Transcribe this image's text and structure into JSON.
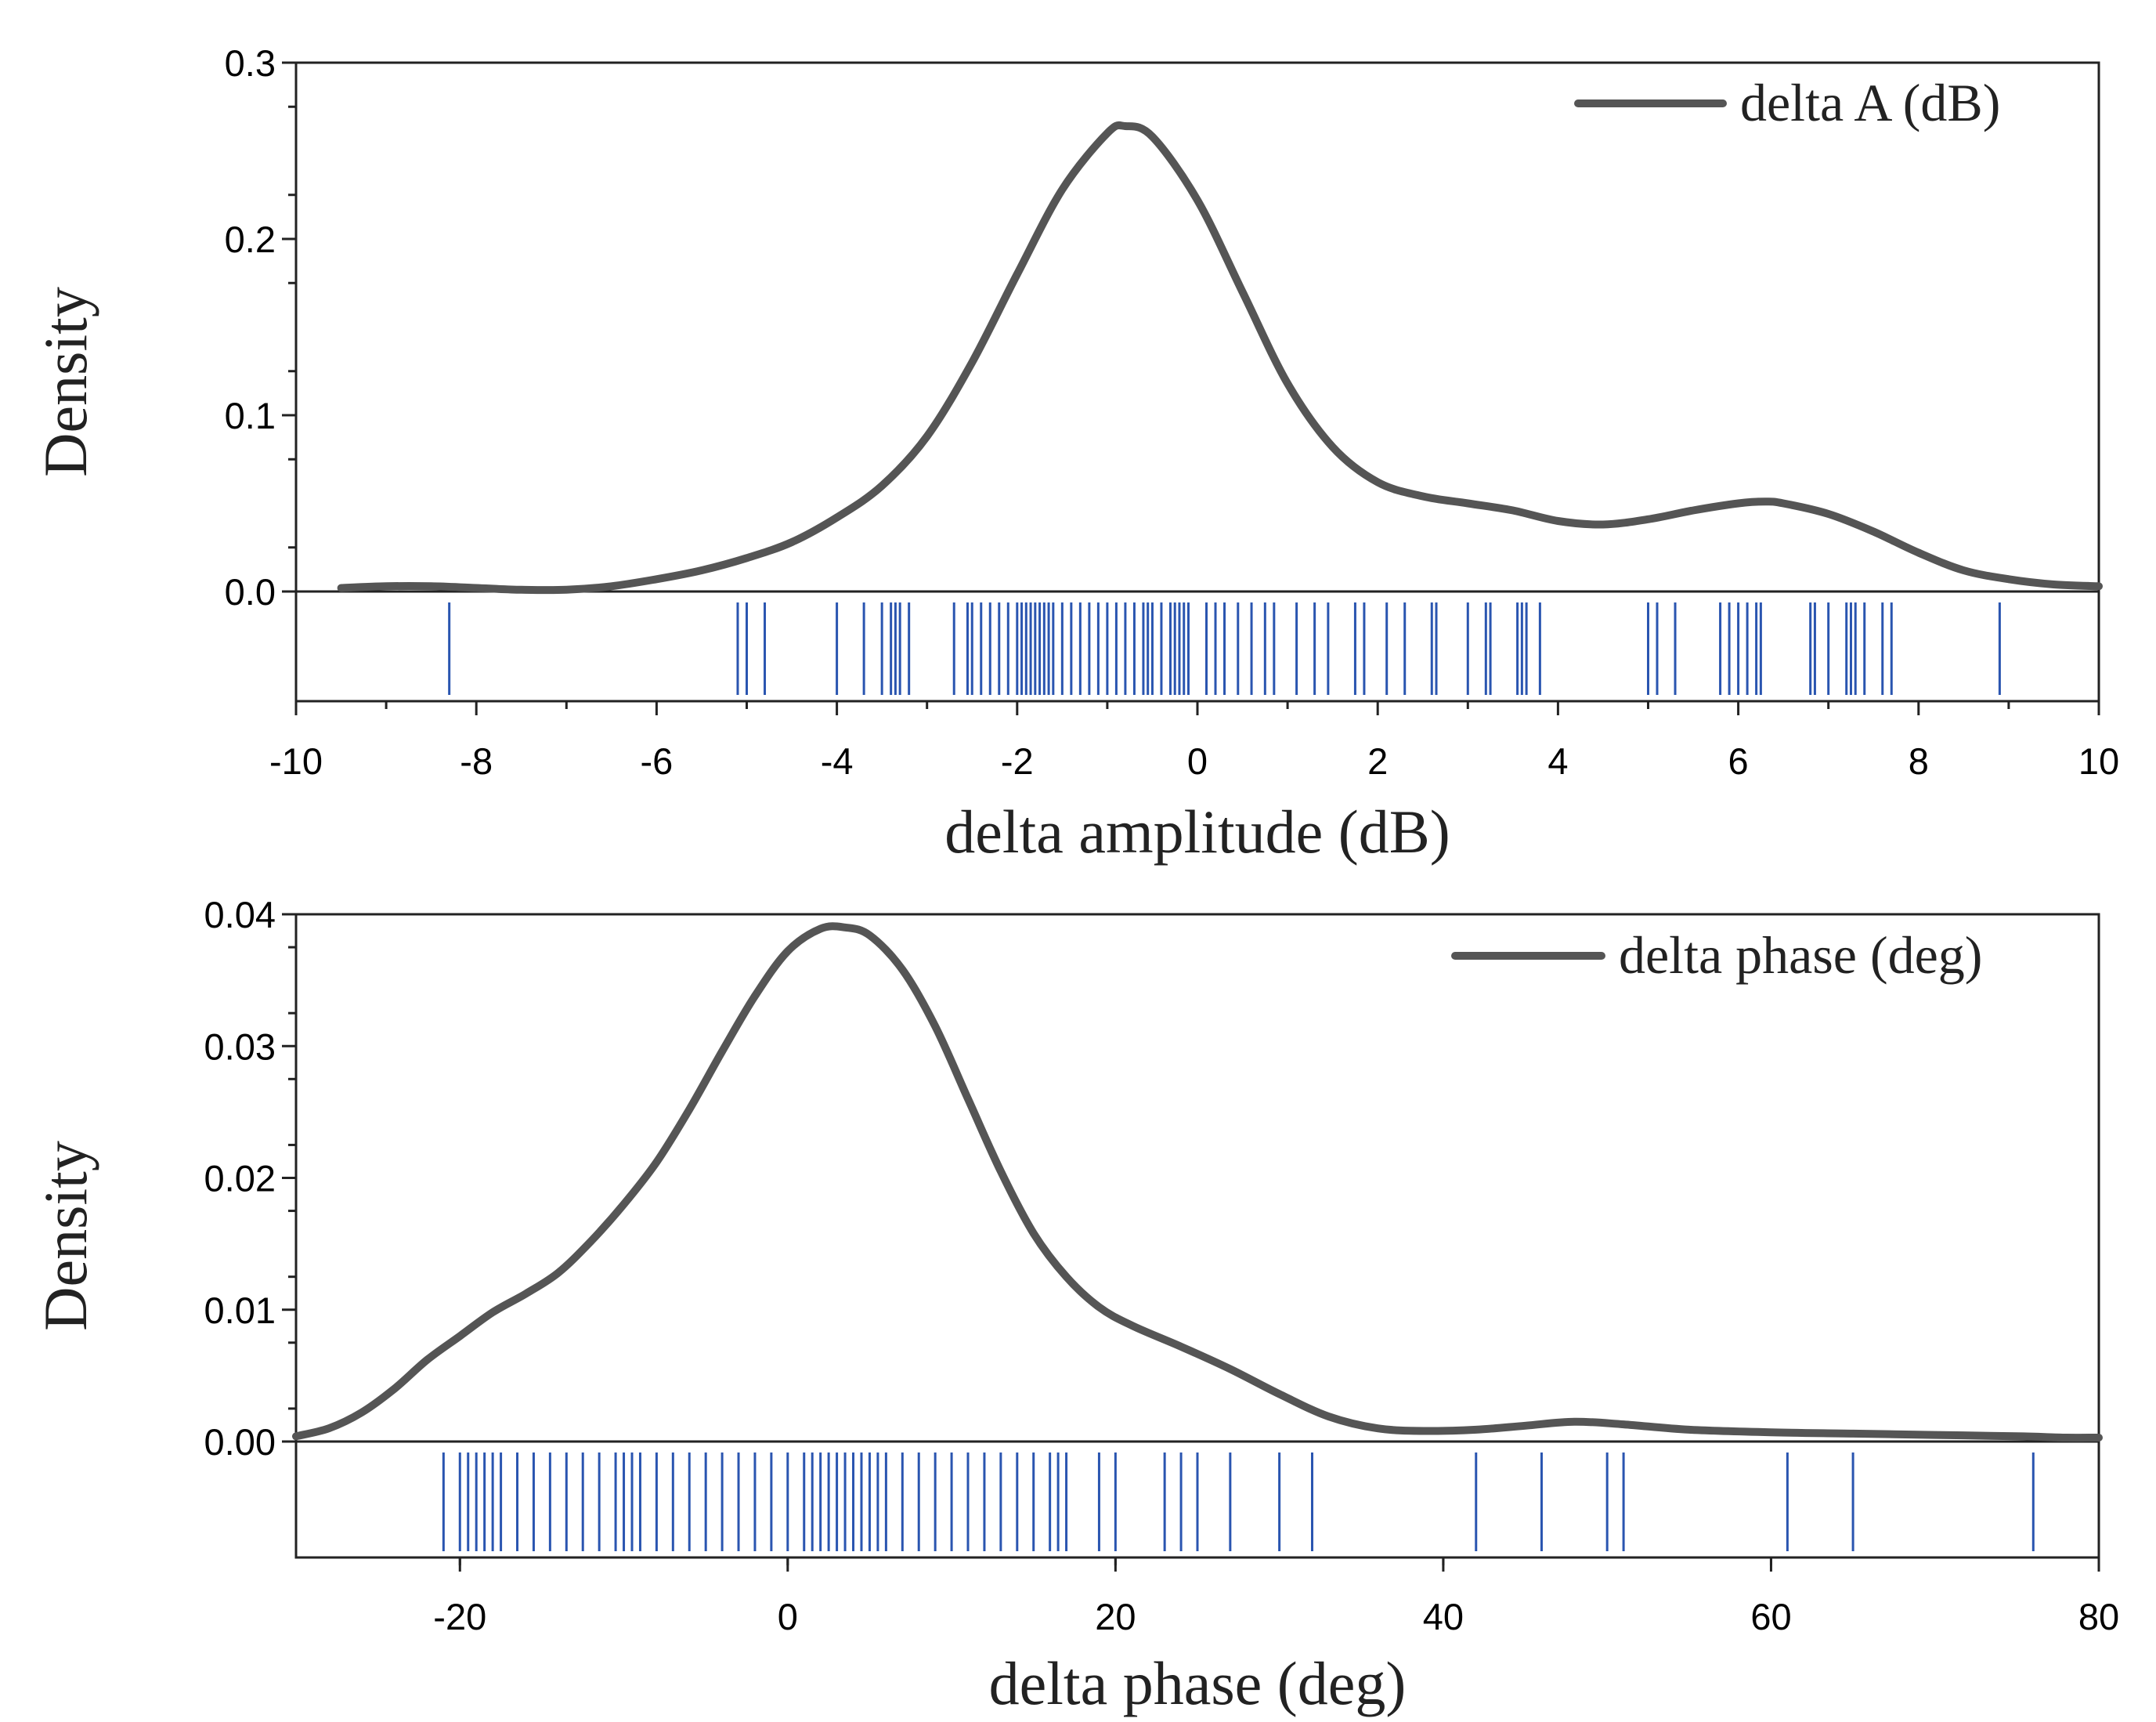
{
  "chart_data": [
    {
      "type": "line",
      "subtype": "kernel-density-with-rug",
      "legend": "delta A (dB)",
      "legend_position": "top-right",
      "xlabel": "delta amplitude (dB)",
      "ylabel": "Density",
      "xlim": [
        -10,
        10
      ],
      "ylim": [
        -0.063,
        0.3
      ],
      "xticks": [
        -10,
        -8,
        -6,
        -4,
        -2,
        0,
        2,
        4,
        6,
        8,
        10
      ],
      "xtick_labels": [
        "-10",
        "-8",
        "-6",
        "-4",
        "-2",
        "0",
        "2",
        "4",
        "6",
        "8",
        "10"
      ],
      "yticks": [
        0.0,
        0.1,
        0.2,
        0.3
      ],
      "ytick_labels": [
        "0.0",
        "0.1",
        "0.2",
        "0.3"
      ],
      "x": [
        -9.5,
        -9.0,
        -8.5,
        -8.0,
        -7.5,
        -7.0,
        -6.5,
        -6.0,
        -5.5,
        -5.0,
        -4.5,
        -4.0,
        -3.5,
        -3.0,
        -2.5,
        -2.0,
        -1.5,
        -1.0,
        -0.8,
        -0.5,
        0.0,
        0.5,
        1.0,
        1.5,
        2.0,
        2.5,
        3.0,
        3.5,
        4.0,
        4.5,
        5.0,
        5.5,
        6.0,
        6.3,
        6.5,
        7.0,
        7.5,
        8.0,
        8.5,
        9.0,
        9.5,
        10.0
      ],
      "y": [
        0.002,
        0.003,
        0.003,
        0.002,
        0.001,
        0.001,
        0.003,
        0.007,
        0.012,
        0.019,
        0.028,
        0.042,
        0.06,
        0.088,
        0.13,
        0.18,
        0.228,
        0.26,
        0.264,
        0.258,
        0.222,
        0.17,
        0.118,
        0.082,
        0.062,
        0.054,
        0.05,
        0.046,
        0.04,
        0.038,
        0.041,
        0.046,
        0.05,
        0.051,
        0.05,
        0.044,
        0.034,
        0.022,
        0.012,
        0.007,
        0.004,
        0.003
      ],
      "rug": [
        -8.3,
        -5.1,
        -5.0,
        -4.8,
        -4.0,
        -3.7,
        -3.5,
        -3.4,
        -3.35,
        -3.3,
        -3.2,
        -2.7,
        -2.55,
        -2.5,
        -2.4,
        -2.3,
        -2.2,
        -2.1,
        -2.0,
        -1.95,
        -1.9,
        -1.85,
        -1.8,
        -1.75,
        -1.7,
        -1.65,
        -1.6,
        -1.5,
        -1.4,
        -1.3,
        -1.2,
        -1.1,
        -1.0,
        -0.9,
        -0.8,
        -0.7,
        -0.6,
        -0.55,
        -0.5,
        -0.4,
        -0.3,
        -0.25,
        -0.2,
        -0.15,
        -0.1,
        0.1,
        0.2,
        0.3,
        0.45,
        0.6,
        0.75,
        0.85,
        1.1,
        1.3,
        1.45,
        1.75,
        1.85,
        2.1,
        2.3,
        2.6,
        2.65,
        3.0,
        3.2,
        3.25,
        3.55,
        3.6,
        3.65,
        3.8,
        5.0,
        5.1,
        5.3,
        5.8,
        5.9,
        6.0,
        6.1,
        6.2,
        6.25,
        6.8,
        6.85,
        7.0,
        7.2,
        7.25,
        7.3,
        7.4,
        7.6,
        7.7,
        8.9
      ]
    },
    {
      "type": "line",
      "subtype": "kernel-density-with-rug",
      "legend": "delta phase (deg)",
      "legend_position": "top-right",
      "xlabel": "delta phase (deg)",
      "ylabel": "Density",
      "xlim": [
        -30,
        80
      ],
      "ylim": [
        -0.0092,
        0.042
      ],
      "xticks": [
        -20,
        0,
        20,
        40,
        60,
        80
      ],
      "xtick_labels": [
        "-20",
        "0",
        "20",
        "40",
        "60",
        "80"
      ],
      "yticks": [
        0.0,
        0.01,
        0.02,
        0.03,
        0.04
      ],
      "ytick_labels": [
        "0.00",
        "0.01",
        "0.02",
        "0.03",
        "0.04"
      ],
      "x": [
        -30,
        -28,
        -26,
        -24,
        -22,
        -20,
        -18,
        -16,
        -14,
        -12,
        -10,
        -8,
        -6,
        -4,
        -2,
        0,
        2,
        3.5,
        5,
        7,
        9,
        11,
        13,
        15,
        17,
        19,
        21,
        24,
        27,
        30,
        33,
        36,
        39,
        42,
        45,
        48,
        51,
        55,
        60,
        65,
        70,
        75,
        78,
        80
      ],
      "y": [
        0.0004,
        0.001,
        0.0022,
        0.004,
        0.0062,
        0.008,
        0.0098,
        0.0112,
        0.0128,
        0.0152,
        0.018,
        0.0212,
        0.0252,
        0.0296,
        0.0338,
        0.0372,
        0.0389,
        0.039,
        0.0384,
        0.0358,
        0.0315,
        0.026,
        0.0205,
        0.0158,
        0.0125,
        0.0102,
        0.0088,
        0.0072,
        0.0055,
        0.0036,
        0.0019,
        0.001,
        0.0008,
        0.0009,
        0.0012,
        0.0015,
        0.0013,
        0.0009,
        0.0007,
        0.0006,
        0.0005,
        0.0004,
        0.0003,
        0.0003
      ],
      "rug": [
        -21,
        -20,
        -19.5,
        -19,
        -18.5,
        -18,
        -17.5,
        -16.5,
        -15.5,
        -14.5,
        -13.5,
        -12.5,
        -11.5,
        -10.5,
        -10,
        -9.5,
        -9,
        -8,
        -7,
        -6,
        -5,
        -4,
        -3,
        -2,
        -1,
        0,
        1,
        1.5,
        2,
        2.5,
        3,
        3.5,
        4,
        4.5,
        5,
        5.5,
        6,
        7,
        8,
        9,
        10,
        11,
        12,
        13,
        14,
        15,
        16,
        16.5,
        17,
        19,
        20,
        23,
        24,
        25,
        27,
        30,
        32,
        42,
        46,
        50,
        51,
        61,
        65,
        76
      ]
    }
  ]
}
